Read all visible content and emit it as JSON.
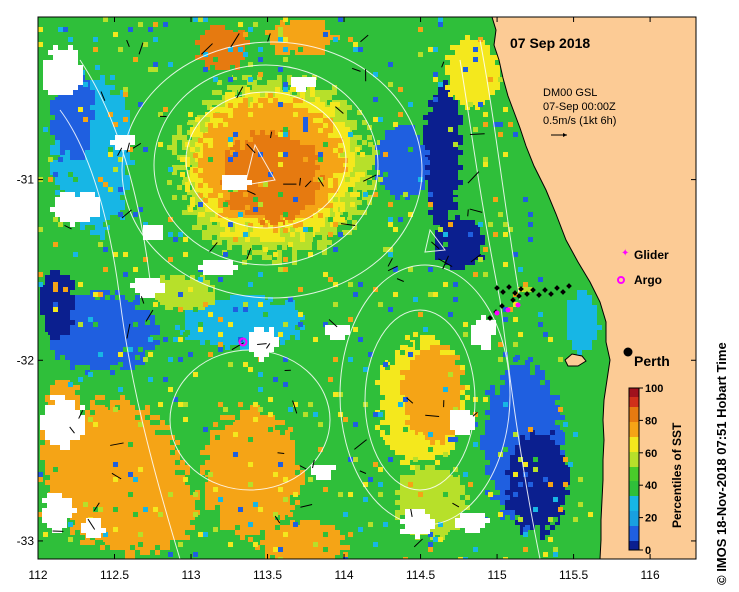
{
  "chart_data": {
    "type": "heatmap",
    "title": "07 Sep 2018",
    "product": {
      "line1": "DM00 GSL",
      "line2": "07-Sep 00:00Z",
      "line3": "0.5m/s (1kt 6h)"
    },
    "x_ticks": [
      "112",
      "112.5",
      "113",
      "113.5",
      "114",
      "114.5",
      "115",
      "115.5",
      "116"
    ],
    "x_values": [
      112,
      112.5,
      113,
      113.5,
      114,
      114.5,
      115,
      115.5,
      116
    ],
    "y_ticks": [
      "-31",
      "-32",
      "-33"
    ],
    "y_values": [
      -31,
      -32,
      -33
    ],
    "xlim": [
      112,
      116.3
    ],
    "ylim": [
      -33.1,
      -30.1
    ],
    "legend": {
      "glider_label": "Glider",
      "argo_label": "Argo"
    },
    "place_label": "Perth",
    "colorbar": {
      "label": "Percentiles of SST",
      "ticks": [
        "0",
        "20",
        "40",
        "60",
        "80",
        "100"
      ],
      "values": [
        0,
        20,
        40,
        60,
        80,
        100
      ]
    },
    "credit": "© IMOS 18-Nov-2018 07:51 Hobart Time"
  },
  "colors": {
    "land": "#fccb95",
    "low": "#0b1f8f",
    "blue": "#1f5fe0",
    "cyan": "#17b6e5",
    "green": "#2fbf3a",
    "yellowgreen": "#b7e02a",
    "yellow": "#f4e81d",
    "orange": "#f5a416",
    "darkorange": "#e67a10",
    "red": "#d0301a",
    "darkred": "#a0121d",
    "glider": "#ff00ff",
    "argo": "#ff00ff"
  }
}
